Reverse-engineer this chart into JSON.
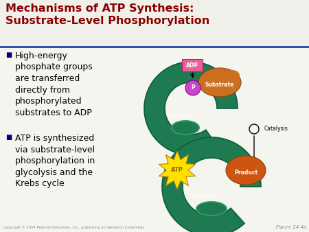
{
  "title_line1": "Mechanisms of ATP Synthesis:",
  "title_line2": "Substrate-Level Phosphorylation",
  "title_color": "#8B0000",
  "title_fontsize": 11.5,
  "background_color": "#F5F5F0",
  "bullet_color": "#000080",
  "bullet_fontsize": 9.0,
  "bullet1_lines": [
    "High-energy\nphosphate groups\nare transferred\ndirectly from\nphosphorylated\nsubstrates to ADP"
  ],
  "bullet2_lines": [
    "ATP is synthesized\nvia substrate-level\nphosphorylation in\nglycolysis and the\nKrebs cycle"
  ],
  "header_bar_color": "#2244AA",
  "copyright_text": "Copyright © 2004 Pearson Education, Inc., publishing as Benjamin Cummings",
  "figure_label": "Figure 24.4a",
  "enzyme_color": "#1E7A50",
  "enzyme_edge_color": "#0D5C38",
  "enzyme_light_color": "#2DA068",
  "substrate_color": "#CC7020",
  "product_color": "#CC5510",
  "atp_color": "#FFE000",
  "atp_text_color": "#8B6000",
  "adp_box_color": "#E8609A",
  "adp_text_color": "#FFFFFF",
  "p_circle_color": "#CC44CC",
  "p_text_color": "#FFFFFF",
  "catalysis_color": "#000000"
}
